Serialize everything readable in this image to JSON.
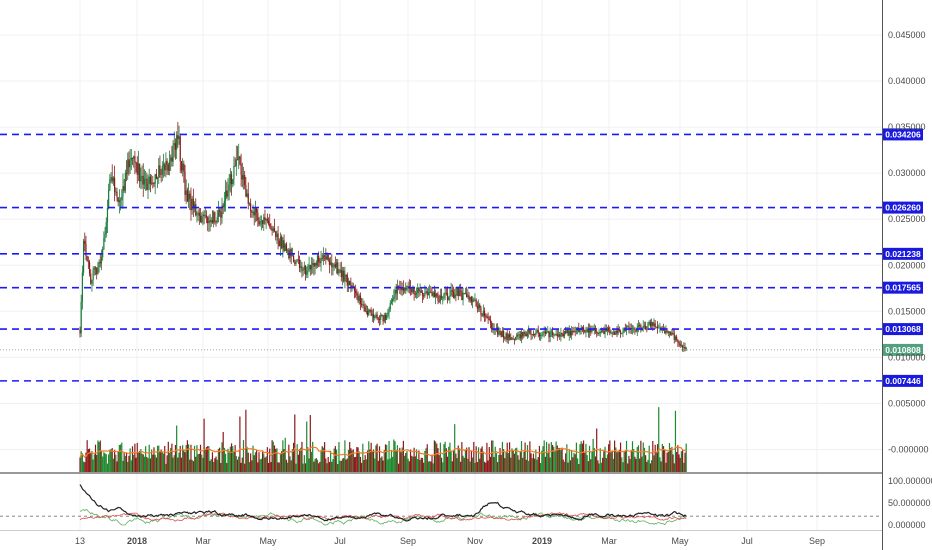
{
  "chart_data": {
    "type": "candlestick",
    "price_axis": {
      "ticks": [
        "0.045000",
        "0.040000",
        "0.035000",
        "0.030000",
        "0.025000",
        "0.020000",
        "0.015000",
        "0.010000",
        "0.005000",
        "-0.000000"
      ],
      "tick_values": [
        0.045,
        0.04,
        0.035,
        0.03,
        0.025,
        0.02,
        0.015,
        0.01,
        0.005,
        0.0
      ]
    },
    "oscillator_axis": {
      "ticks": [
        "100.000000",
        "50.000000",
        "0.000000"
      ],
      "tick_values": [
        100,
        50,
        0
      ]
    },
    "x_axis_labels": [
      "13",
      "2018",
      "Mar",
      "May",
      "Jul",
      "Sep",
      "Nov",
      "2019",
      "Mar",
      "May",
      "Jul",
      "Sep"
    ],
    "support_resistance_levels": [
      "0.034206",
      "0.026260",
      "0.021238",
      "0.017565",
      "0.013068",
      "0.007446"
    ],
    "current_price": "0.010808",
    "price_path": [
      {
        "date": "2017-12-13",
        "price": 0.013
      },
      {
        "date": "2017-12-16",
        "price": 0.023
      },
      {
        "date": "2017-12-22",
        "price": 0.0185
      },
      {
        "date": "2017-12-31",
        "price": 0.0205
      },
      {
        "date": "2018-01-08",
        "price": 0.03
      },
      {
        "date": "2018-01-15",
        "price": 0.0265
      },
      {
        "date": "2018-01-25",
        "price": 0.0325
      },
      {
        "date": "2018-02-05",
        "price": 0.0285
      },
      {
        "date": "2018-02-15",
        "price": 0.03
      },
      {
        "date": "2018-02-26",
        "price": 0.031
      },
      {
        "date": "2018-03-05",
        "price": 0.034
      },
      {
        "date": "2018-03-12",
        "price": 0.0275
      },
      {
        "date": "2018-03-25",
        "price": 0.0248
      },
      {
        "date": "2018-04-10",
        "price": 0.0255
      },
      {
        "date": "2018-04-24",
        "price": 0.0318
      },
      {
        "date": "2018-05-05",
        "price": 0.0262
      },
      {
        "date": "2018-05-20",
        "price": 0.024
      },
      {
        "date": "2018-06-05",
        "price": 0.0215
      },
      {
        "date": "2018-06-20",
        "price": 0.0195
      },
      {
        "date": "2018-07-05",
        "price": 0.0212
      },
      {
        "date": "2018-07-20",
        "price": 0.0192
      },
      {
        "date": "2018-08-10",
        "price": 0.015
      },
      {
        "date": "2018-08-25",
        "price": 0.0142
      },
      {
        "date": "2018-09-05",
        "price": 0.0175
      },
      {
        "date": "2018-09-20",
        "price": 0.0172
      },
      {
        "date": "2018-10-10",
        "price": 0.0165
      },
      {
        "date": "2018-10-25",
        "price": 0.017
      },
      {
        "date": "2018-11-10",
        "price": 0.0158
      },
      {
        "date": "2018-11-25",
        "price": 0.013
      },
      {
        "date": "2018-12-10",
        "price": 0.012
      },
      {
        "date": "2018-12-25",
        "price": 0.0128
      },
      {
        "date": "2019-01-15",
        "price": 0.0124
      },
      {
        "date": "2019-02-10",
        "price": 0.013
      },
      {
        "date": "2019-03-10",
        "price": 0.0128
      },
      {
        "date": "2019-04-05",
        "price": 0.0135
      },
      {
        "date": "2019-04-20",
        "price": 0.0128
      },
      {
        "date": "2019-05-05",
        "price": 0.0108
      }
    ],
    "grid": true,
    "colors": {
      "up": "#26a69a",
      "up_dark": "#1a7a3a",
      "down": "#8b1a1a",
      "level_line": "#1a1aff",
      "level_tag_bg": "#1a1adf",
      "price_tag_bg": "#53a07e",
      "volume_ma": "#f57c2a",
      "osc_main": "#222222",
      "osc_signal": "#e05050",
      "osc_third": "#60b060",
      "dotted": "#888888"
    }
  }
}
